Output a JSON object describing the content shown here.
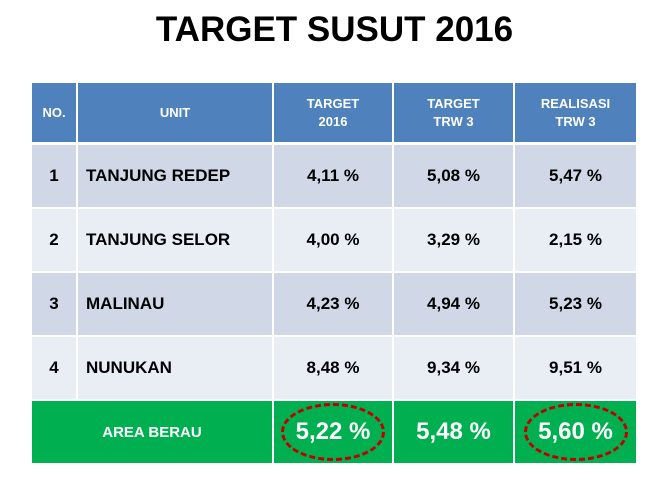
{
  "title": "TARGET SUSUT 2016",
  "table": {
    "headers": {
      "no": "NO.",
      "unit": "UNIT",
      "target_2016_line1": "TARGET",
      "target_2016_line2": "2016",
      "target_trw3_line1": "TARGET",
      "target_trw3_line2": "TRW 3",
      "realisasi_trw3_line1": "REALISASI",
      "realisasi_trw3_line2": "TRW 3"
    },
    "rows": [
      {
        "no": "1",
        "unit": "TANJUNG REDEP",
        "target_2016": "4,11 %",
        "target_trw3": "5,08 %",
        "realisasi_trw3": "5,47 %"
      },
      {
        "no": "2",
        "unit": "TANJUNG SELOR",
        "target_2016": "4,00 %",
        "target_trw3": "3,29 %",
        "realisasi_trw3": "2,15 %"
      },
      {
        "no": "3",
        "unit": "MALINAU",
        "target_2016": "4,23 %",
        "target_trw3": "4,94 %",
        "realisasi_trw3": "5,23 %"
      },
      {
        "no": "4",
        "unit": "NUNUKAN",
        "target_2016": "8,48 %",
        "target_trw3": "9,34 %",
        "realisasi_trw3": "9,51 %"
      }
    ],
    "total": {
      "label": "AREA BERAU",
      "target_2016": "5,22 %",
      "target_trw3": "5,48 %",
      "realisasi_trw3": "5,60 %"
    }
  },
  "colors": {
    "header": "#4f81bd",
    "row_odd": "#d0d8e8",
    "row_even": "#e9edf4",
    "total_row": "#00b050",
    "highlight_circle": "#c00000"
  }
}
